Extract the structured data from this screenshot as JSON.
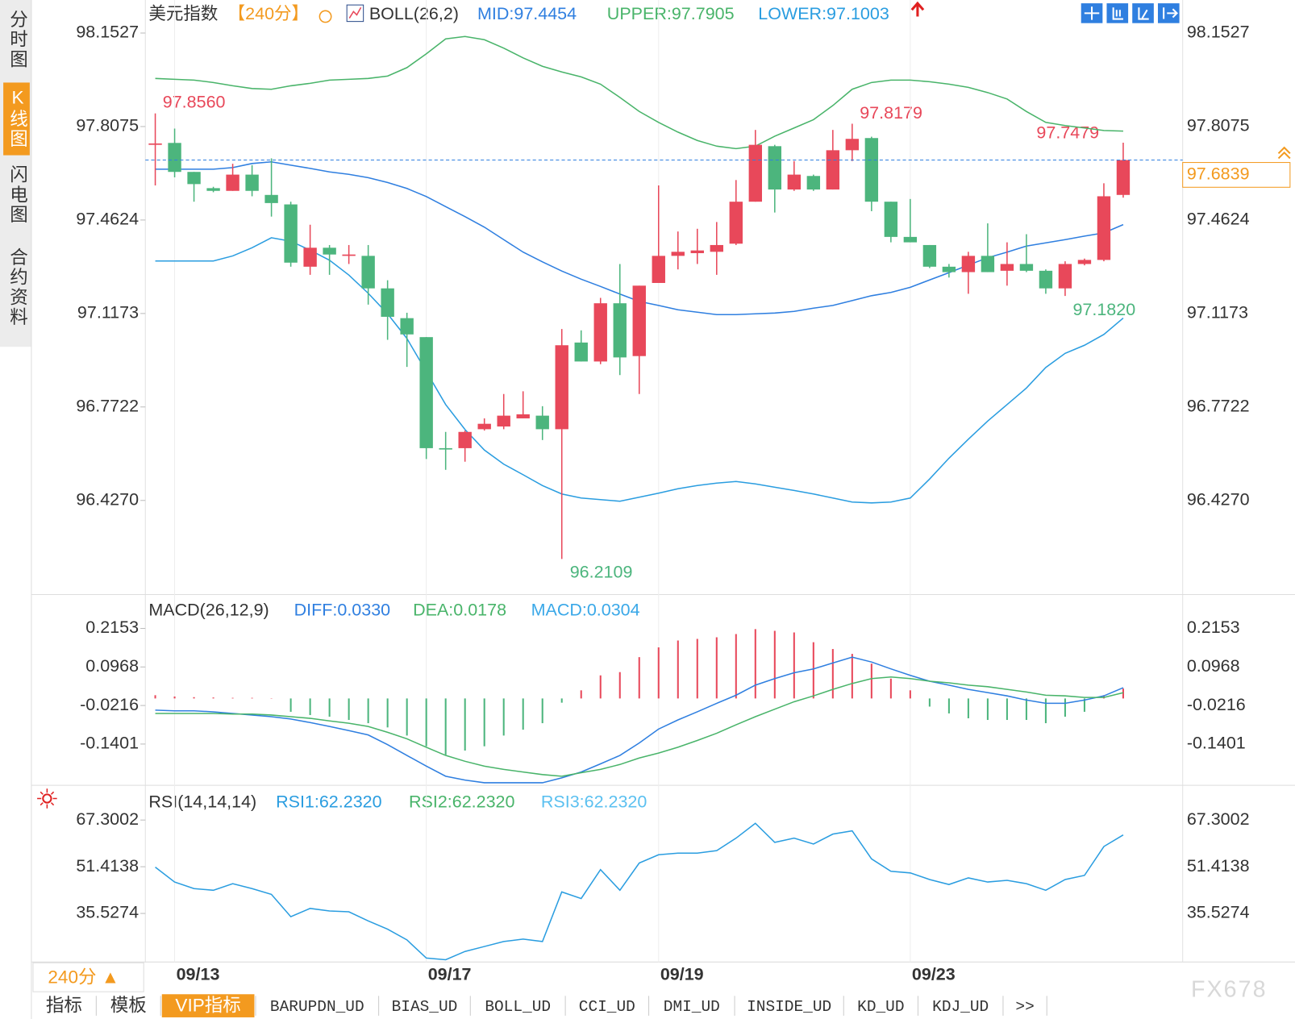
{
  "chart_data": [
    {
      "type": "candlestick",
      "title": "美元指数",
      "subtitle": "【240分】",
      "indicator": "BOLL(26,2)",
      "categories": [
        null,
        "09/13",
        null,
        null,
        null,
        null,
        null,
        null,
        null,
        null,
        null,
        null,
        null,
        null,
        "09/17",
        null,
        null,
        null,
        null,
        null,
        null,
        null,
        null,
        null,
        null,
        null,
        "09/19",
        null,
        null,
        null,
        null,
        null,
        null,
        null,
        null,
        null,
        null,
        null,
        null,
        "09/23",
        null,
        null,
        null,
        null,
        null,
        null,
        null,
        null,
        null,
        null,
        null
      ],
      "open": [
        97.74,
        97.747,
        97.64,
        97.58,
        97.57,
        97.63,
        97.555,
        97.52,
        97.29,
        97.36,
        97.33,
        97.33,
        97.21,
        97.1,
        97.03,
        96.62,
        96.62,
        96.69,
        96.7,
        96.73,
        96.74,
        96.69,
        97.01,
        96.94,
        97.155,
        96.96,
        97.23,
        97.33,
        97.34,
        97.345,
        97.375,
        97.53,
        97.735,
        97.575,
        97.625,
        97.575,
        97.72,
        97.765,
        97.53,
        97.4,
        97.37,
        97.29,
        97.27,
        97.33,
        97.275,
        97.3,
        97.275,
        97.21,
        97.3,
        97.315,
        97.555
      ],
      "high": [
        97.856,
        97.8,
        97.64,
        97.585,
        97.67,
        97.665,
        97.69,
        97.53,
        97.445,
        97.37,
        97.37,
        97.37,
        97.24,
        97.12,
        97.03,
        96.68,
        96.685,
        96.73,
        96.82,
        96.83,
        96.775,
        97.06,
        97.055,
        97.175,
        97.3,
        97.22,
        97.59,
        97.42,
        97.43,
        97.455,
        97.61,
        97.795,
        97.74,
        97.68,
        97.63,
        97.795,
        97.8179,
        97.77,
        97.53,
        97.54,
        97.37,
        97.3,
        97.345,
        97.45,
        97.38,
        97.41,
        97.28,
        97.31,
        97.32,
        97.598,
        97.7479
      ],
      "low": [
        97.59,
        97.62,
        97.53,
        97.565,
        97.57,
        97.55,
        97.475,
        97.29,
        97.26,
        97.26,
        97.3,
        97.15,
        97.02,
        96.92,
        96.58,
        96.54,
        96.57,
        96.685,
        96.69,
        96.73,
        96.65,
        96.2109,
        96.94,
        96.93,
        96.89,
        96.82,
        97.23,
        97.28,
        97.3,
        97.26,
        97.37,
        97.53,
        97.49,
        97.57,
        97.57,
        97.575,
        97.68,
        97.495,
        97.38,
        97.38,
        97.285,
        97.25,
        97.19,
        97.27,
        97.22,
        97.27,
        97.19,
        97.182,
        97.295,
        97.31,
        97.545
      ],
      "close": [
        97.745,
        97.64,
        97.595,
        97.57,
        97.63,
        97.57,
        97.525,
        97.305,
        97.36,
        97.335,
        97.335,
        97.21,
        97.105,
        97.04,
        96.62,
        96.615,
        96.68,
        96.71,
        96.74,
        96.745,
        96.69,
        97.0,
        96.94,
        97.155,
        96.955,
        97.22,
        97.33,
        97.345,
        97.35,
        97.37,
        97.53,
        97.74,
        97.575,
        97.63,
        97.575,
        97.72,
        97.762,
        97.53,
        97.4,
        97.38,
        97.29,
        97.27,
        97.33,
        97.27,
        97.3,
        97.275,
        97.21,
        97.3,
        97.315,
        97.55,
        97.6839
      ],
      "up_color": "#e8485a",
      "down_color": "#4cb57d",
      "series": [
        {
          "name": "MID:97.4454",
          "color": "#2f7fe0",
          "values": [
            97.65,
            97.65,
            97.65,
            97.65,
            97.656,
            97.671,
            97.677,
            97.665,
            97.653,
            97.64,
            97.631,
            97.619,
            97.601,
            97.579,
            97.549,
            97.512,
            97.475,
            97.436,
            97.39,
            97.344,
            97.308,
            97.274,
            97.244,
            97.217,
            97.189,
            97.162,
            97.147,
            97.131,
            97.122,
            97.113,
            97.113,
            97.116,
            97.119,
            97.125,
            97.137,
            97.147,
            97.165,
            97.183,
            97.195,
            97.214,
            97.241,
            97.268,
            97.296,
            97.323,
            97.344,
            97.366,
            97.378,
            97.39,
            97.403,
            97.415,
            97.4454
          ]
        },
        {
          "name": "UPPER:97.7905",
          "color": "#49b46a",
          "values": [
            97.985,
            97.982,
            97.979,
            97.97,
            97.958,
            97.948,
            97.945,
            97.958,
            97.967,
            97.979,
            97.982,
            97.985,
            97.994,
            98.025,
            98.076,
            98.131,
            98.14,
            98.128,
            98.097,
            98.061,
            98.03,
            98.009,
            97.991,
            97.964,
            97.915,
            97.863,
            97.823,
            97.787,
            97.756,
            97.735,
            97.726,
            97.735,
            97.772,
            97.802,
            97.833,
            97.885,
            97.945,
            97.97,
            97.979,
            97.979,
            97.973,
            97.964,
            97.952,
            97.933,
            97.909,
            97.863,
            97.823,
            97.811,
            97.802,
            97.793,
            97.7905
          ]
        },
        {
          "name": "LOWER:97.1003",
          "color": "#2a9de0",
          "values": [
            97.311,
            97.311,
            97.311,
            97.311,
            97.33,
            97.36,
            97.397,
            97.384,
            97.351,
            97.314,
            97.259,
            97.192,
            97.116,
            97.025,
            96.903,
            96.781,
            96.689,
            96.613,
            96.561,
            96.522,
            96.482,
            96.451,
            96.436,
            96.43,
            96.424,
            96.439,
            96.454,
            96.47,
            96.482,
            96.491,
            96.497,
            96.488,
            96.476,
            96.464,
            96.451,
            96.436,
            96.421,
            96.418,
            96.421,
            96.436,
            96.506,
            96.583,
            96.653,
            96.72,
            96.781,
            96.842,
            96.918,
            96.97,
            97.0,
            97.04,
            97.1003
          ]
        }
      ],
      "annotations": [
        "97.8560",
        "97.8179",
        "97.7479",
        "96.2109",
        "97.1820"
      ],
      "ylim": [
        96.0856,
        98.2747
      ],
      "yticks": [
        98.1527,
        97.8075,
        97.4624,
        97.1173,
        96.7722,
        {
          "value": 96.427,
          "label": "96.4270"
        }
      ]
    },
    {
      "type": "macd",
      "title": "MACD(26,12,9)",
      "series": [
        {
          "name": "DIFF:0.0330",
          "color": "#2f7fe0",
          "values": [
            -0.036,
            -0.038,
            -0.038,
            -0.041,
            -0.046,
            -0.051,
            -0.056,
            -0.063,
            -0.074,
            -0.086,
            -0.099,
            -0.112,
            -0.142,
            -0.175,
            -0.208,
            -0.239,
            -0.251,
            -0.259,
            -0.259,
            -0.259,
            -0.259,
            -0.244,
            -0.226,
            -0.201,
            -0.175,
            -0.137,
            -0.094,
            -0.066,
            -0.041,
            -0.015,
            0.01,
            0.041,
            0.061,
            0.079,
            0.091,
            0.109,
            0.127,
            0.112,
            0.091,
            0.071,
            0.053,
            0.041,
            0.028,
            0.018,
            0.008,
            -0.005,
            -0.015,
            -0.015,
            -0.005,
            0.008,
            0.033
          ]
        },
        {
          "name": "DEA:0.0178",
          "color": "#49b46a",
          "values": [
            -0.046,
            -0.046,
            -0.046,
            -0.046,
            -0.048,
            -0.048,
            -0.051,
            -0.056,
            -0.061,
            -0.069,
            -0.076,
            -0.086,
            -0.104,
            -0.124,
            -0.15,
            -0.175,
            -0.193,
            -0.208,
            -0.218,
            -0.226,
            -0.234,
            -0.239,
            -0.228,
            -0.218,
            -0.203,
            -0.183,
            -0.168,
            -0.15,
            -0.129,
            -0.107,
            -0.081,
            -0.056,
            -0.033,
            -0.01,
            0.008,
            0.028,
            0.046,
            0.061,
            0.066,
            0.061,
            0.053,
            0.048,
            0.041,
            0.036,
            0.028,
            0.02,
            0.01,
            0.008,
            0.003,
            0.003,
            0.0178
          ]
        },
        {
          "name": "MACD:0.0304",
          "color": "#3aa8e8",
          "bars": true,
          "values": [
            0.01,
            0.006,
            0.004,
            0.003,
            0.002,
            0.002,
            0.001,
            -0.041,
            -0.051,
            -0.056,
            -0.066,
            -0.076,
            -0.089,
            -0.114,
            -0.147,
            -0.173,
            -0.16,
            -0.147,
            -0.114,
            -0.096,
            -0.076,
            -0.013,
            0.025,
            0.071,
            0.081,
            0.127,
            0.157,
            0.178,
            0.183,
            0.188,
            0.198,
            0.213,
            0.208,
            0.203,
            0.173,
            0.152,
            0.137,
            0.107,
            0.061,
            0.025,
            -0.025,
            -0.046,
            -0.061,
            -0.066,
            -0.066,
            -0.066,
            -0.076,
            -0.056,
            -0.041,
            0.01,
            0.0304
          ]
        }
      ],
      "ylim": [
        -0.2644,
        0.3143
      ],
      "yticks": [
        0.2153,
        0.0968,
        -0.0216,
        -0.1401
      ]
    },
    {
      "type": "line",
      "title": "RSI(14,14,14)",
      "series": [
        {
          "name": "RSI1:62.2320",
          "color": "#2a9de0",
          "values": [
            51.28,
            46.21,
            43.97,
            43.4,
            45.65,
            43.97,
            42.0,
            34.41,
            37.22,
            36.37,
            36.09,
            33.0,
            30.19,
            26.53,
            20.35,
            19.79,
            22.6,
            24.29,
            25.97,
            26.82,
            25.97,
            42.84,
            40.59,
            50.43,
            43.4,
            52.68,
            55.49,
            56.05,
            56.05,
            56.9,
            61.12,
            66.18,
            59.71,
            61.12,
            59.15,
            62.52,
            63.64,
            54.09,
            49.87,
            49.31,
            47.06,
            45.37,
            47.62,
            46.21,
            46.78,
            45.65,
            43.4,
            47.06,
            48.46,
            58.3,
            62.232
          ]
        }
      ],
      "legend_extra": [
        {
          "name": "RSI2:62.2320",
          "color": "#49b46a"
        },
        {
          "name": "RSI3:62.2320",
          "color": "#5bc0f0"
        }
      ],
      "ylim": [
        19.0,
        78.83
      ],
      "yticks": [
        67.3002,
        51.4138,
        35.5274
      ]
    }
  ],
  "ui": {
    "sidebar": [
      "分时图",
      "K线图",
      "闪电图",
      "合约资料"
    ],
    "period": "240分 ▲",
    "tabs": [
      "指标",
      "模板",
      "VIP指标",
      "BARUPDN_UD",
      "BIAS_UD",
      "BOLL_UD",
      "CCI_UD",
      "DMI_UD",
      "INSIDE_UD",
      "KD_UD",
      "KDJ_UD",
      ">>"
    ],
    "watermark": "FX678"
  }
}
